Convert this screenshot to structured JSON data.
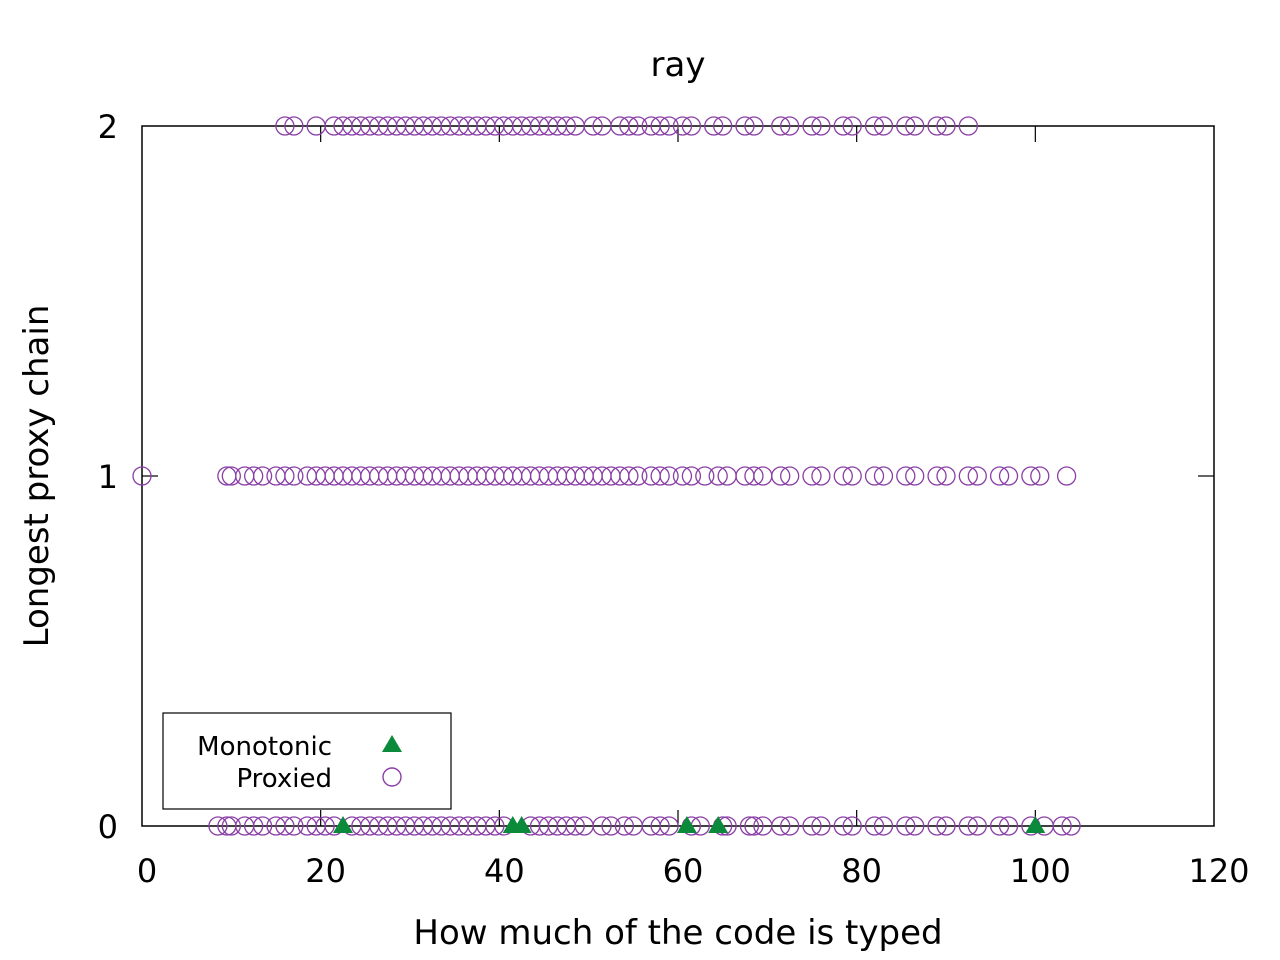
{
  "chart_data": {
    "type": "scatter",
    "title": "ray",
    "xlabel": "How much of the code is typed",
    "ylabel": "Longest proxy chain",
    "xlim": [
      0,
      120
    ],
    "ylim": [
      0,
      2
    ],
    "xticks": [
      0,
      20,
      40,
      60,
      80,
      100,
      120
    ],
    "yticks": [
      0,
      1,
      2
    ],
    "xtick_labels": [
      "0",
      "20",
      "40",
      "60",
      "80",
      "100",
      "120"
    ],
    "ytick_labels": [
      "0",
      "1",
      "2"
    ],
    "grid": false,
    "legend_position": "bottom-left",
    "series": [
      {
        "name": "Monotonic",
        "marker": "filled-triangle",
        "color": "#0a8a3a",
        "points": [
          [
            22.5,
            0
          ],
          [
            41.5,
            0
          ],
          [
            42.5,
            0
          ],
          [
            61.0,
            0
          ],
          [
            64.5,
            0
          ],
          [
            100.0,
            0
          ]
        ]
      },
      {
        "name": "Proxied",
        "marker": "open-circle",
        "color": "#8a3fa6",
        "points": [
          [
            16.0,
            2
          ],
          [
            17.0,
            2
          ],
          [
            19.5,
            2
          ],
          [
            21.5,
            2
          ],
          [
            22.5,
            2
          ],
          [
            23.5,
            2
          ],
          [
            24.5,
            2
          ],
          [
            25.5,
            2
          ],
          [
            26.5,
            2
          ],
          [
            27.5,
            2
          ],
          [
            28.5,
            2
          ],
          [
            29.5,
            2
          ],
          [
            30.5,
            2
          ],
          [
            31.5,
            2
          ],
          [
            32.5,
            2
          ],
          [
            33.5,
            2
          ],
          [
            34.5,
            2
          ],
          [
            35.5,
            2
          ],
          [
            36.5,
            2
          ],
          [
            37.5,
            2
          ],
          [
            38.5,
            2
          ],
          [
            39.5,
            2
          ],
          [
            40.5,
            2
          ],
          [
            41.5,
            2
          ],
          [
            42.5,
            2
          ],
          [
            43.5,
            2
          ],
          [
            44.5,
            2
          ],
          [
            45.5,
            2
          ],
          [
            46.5,
            2
          ],
          [
            47.5,
            2
          ],
          [
            48.5,
            2
          ],
          [
            50.5,
            2
          ],
          [
            51.5,
            2
          ],
          [
            53.5,
            2
          ],
          [
            54.5,
            2
          ],
          [
            55.5,
            2
          ],
          [
            57.0,
            2
          ],
          [
            58.0,
            2
          ],
          [
            59.0,
            2
          ],
          [
            60.5,
            2
          ],
          [
            61.5,
            2
          ],
          [
            64.0,
            2
          ],
          [
            65.0,
            2
          ],
          [
            67.5,
            2
          ],
          [
            68.5,
            2
          ],
          [
            71.5,
            2
          ],
          [
            72.5,
            2
          ],
          [
            75.0,
            2
          ],
          [
            76.0,
            2
          ],
          [
            78.5,
            2
          ],
          [
            79.5,
            2
          ],
          [
            82.0,
            2
          ],
          [
            83.0,
            2
          ],
          [
            85.5,
            2
          ],
          [
            86.5,
            2
          ],
          [
            89.0,
            2
          ],
          [
            90.0,
            2
          ],
          [
            92.5,
            2
          ],
          [
            0.0,
            1
          ],
          [
            9.5,
            1
          ],
          [
            10.0,
            1
          ],
          [
            11.5,
            1
          ],
          [
            12.5,
            1
          ],
          [
            13.5,
            1
          ],
          [
            15.0,
            1
          ],
          [
            16.0,
            1
          ],
          [
            17.0,
            1
          ],
          [
            18.5,
            1
          ],
          [
            19.5,
            1
          ],
          [
            20.5,
            1
          ],
          [
            21.5,
            1
          ],
          [
            22.5,
            1
          ],
          [
            23.5,
            1
          ],
          [
            24.5,
            1
          ],
          [
            25.5,
            1
          ],
          [
            26.5,
            1
          ],
          [
            27.5,
            1
          ],
          [
            28.5,
            1
          ],
          [
            29.5,
            1
          ],
          [
            30.5,
            1
          ],
          [
            31.5,
            1
          ],
          [
            32.5,
            1
          ],
          [
            33.5,
            1
          ],
          [
            34.5,
            1
          ],
          [
            35.5,
            1
          ],
          [
            36.5,
            1
          ],
          [
            37.5,
            1
          ],
          [
            38.5,
            1
          ],
          [
            39.5,
            1
          ],
          [
            40.5,
            1
          ],
          [
            41.5,
            1
          ],
          [
            42.5,
            1
          ],
          [
            43.5,
            1
          ],
          [
            44.5,
            1
          ],
          [
            45.5,
            1
          ],
          [
            46.5,
            1
          ],
          [
            47.5,
            1
          ],
          [
            48.5,
            1
          ],
          [
            49.5,
            1
          ],
          [
            50.5,
            1
          ],
          [
            51.5,
            1
          ],
          [
            52.5,
            1
          ],
          [
            53.5,
            1
          ],
          [
            54.5,
            1
          ],
          [
            55.5,
            1
          ],
          [
            57.0,
            1
          ],
          [
            58.0,
            1
          ],
          [
            59.0,
            1
          ],
          [
            60.5,
            1
          ],
          [
            61.5,
            1
          ],
          [
            63.0,
            1
          ],
          [
            64.5,
            1
          ],
          [
            65.5,
            1
          ],
          [
            67.5,
            1
          ],
          [
            68.5,
            1
          ],
          [
            69.5,
            1
          ],
          [
            71.5,
            1
          ],
          [
            72.5,
            1
          ],
          [
            75.0,
            1
          ],
          [
            76.0,
            1
          ],
          [
            78.5,
            1
          ],
          [
            79.5,
            1
          ],
          [
            82.0,
            1
          ],
          [
            83.0,
            1
          ],
          [
            85.5,
            1
          ],
          [
            86.5,
            1
          ],
          [
            89.0,
            1
          ],
          [
            90.0,
            1
          ],
          [
            92.5,
            1
          ],
          [
            93.5,
            1
          ],
          [
            96.0,
            1
          ],
          [
            97.0,
            1
          ],
          [
            99.5,
            1
          ],
          [
            100.5,
            1
          ],
          [
            103.5,
            1
          ],
          [
            8.5,
            0
          ],
          [
            9.5,
            0
          ],
          [
            10.0,
            0
          ],
          [
            11.5,
            0
          ],
          [
            12.5,
            0
          ],
          [
            13.5,
            0
          ],
          [
            15.0,
            0
          ],
          [
            16.0,
            0
          ],
          [
            17.0,
            0
          ],
          [
            18.5,
            0
          ],
          [
            19.5,
            0
          ],
          [
            20.5,
            0
          ],
          [
            21.5,
            0
          ],
          [
            23.5,
            0
          ],
          [
            24.5,
            0
          ],
          [
            25.5,
            0
          ],
          [
            26.5,
            0
          ],
          [
            27.5,
            0
          ],
          [
            28.5,
            0
          ],
          [
            29.5,
            0
          ],
          [
            30.5,
            0
          ],
          [
            31.5,
            0
          ],
          [
            32.5,
            0
          ],
          [
            33.5,
            0
          ],
          [
            34.5,
            0
          ],
          [
            35.5,
            0
          ],
          [
            36.5,
            0
          ],
          [
            37.5,
            0
          ],
          [
            38.5,
            0
          ],
          [
            39.5,
            0
          ],
          [
            40.5,
            0
          ],
          [
            43.5,
            0
          ],
          [
            44.5,
            0
          ],
          [
            45.5,
            0
          ],
          [
            46.5,
            0
          ],
          [
            47.5,
            0
          ],
          [
            48.5,
            0
          ],
          [
            49.5,
            0
          ],
          [
            51.5,
            0
          ],
          [
            52.5,
            0
          ],
          [
            54.0,
            0
          ],
          [
            55.0,
            0
          ],
          [
            57.0,
            0
          ],
          [
            58.0,
            0
          ],
          [
            59.0,
            0
          ],
          [
            61.5,
            0
          ],
          [
            62.5,
            0
          ],
          [
            65.0,
            0
          ],
          [
            65.5,
            0
          ],
          [
            68.0,
            0
          ],
          [
            68.5,
            0
          ],
          [
            69.5,
            0
          ],
          [
            71.5,
            0
          ],
          [
            72.5,
            0
          ],
          [
            75.0,
            0
          ],
          [
            76.0,
            0
          ],
          [
            78.5,
            0
          ],
          [
            79.5,
            0
          ],
          [
            82.0,
            0
          ],
          [
            83.0,
            0
          ],
          [
            85.5,
            0
          ],
          [
            86.5,
            0
          ],
          [
            89.0,
            0
          ],
          [
            90.0,
            0
          ],
          [
            92.5,
            0
          ],
          [
            93.5,
            0
          ],
          [
            96.0,
            0
          ],
          [
            97.0,
            0
          ],
          [
            99.5,
            0
          ],
          [
            101.0,
            0
          ],
          [
            103.0,
            0
          ],
          [
            104.0,
            0
          ]
        ]
      }
    ]
  }
}
